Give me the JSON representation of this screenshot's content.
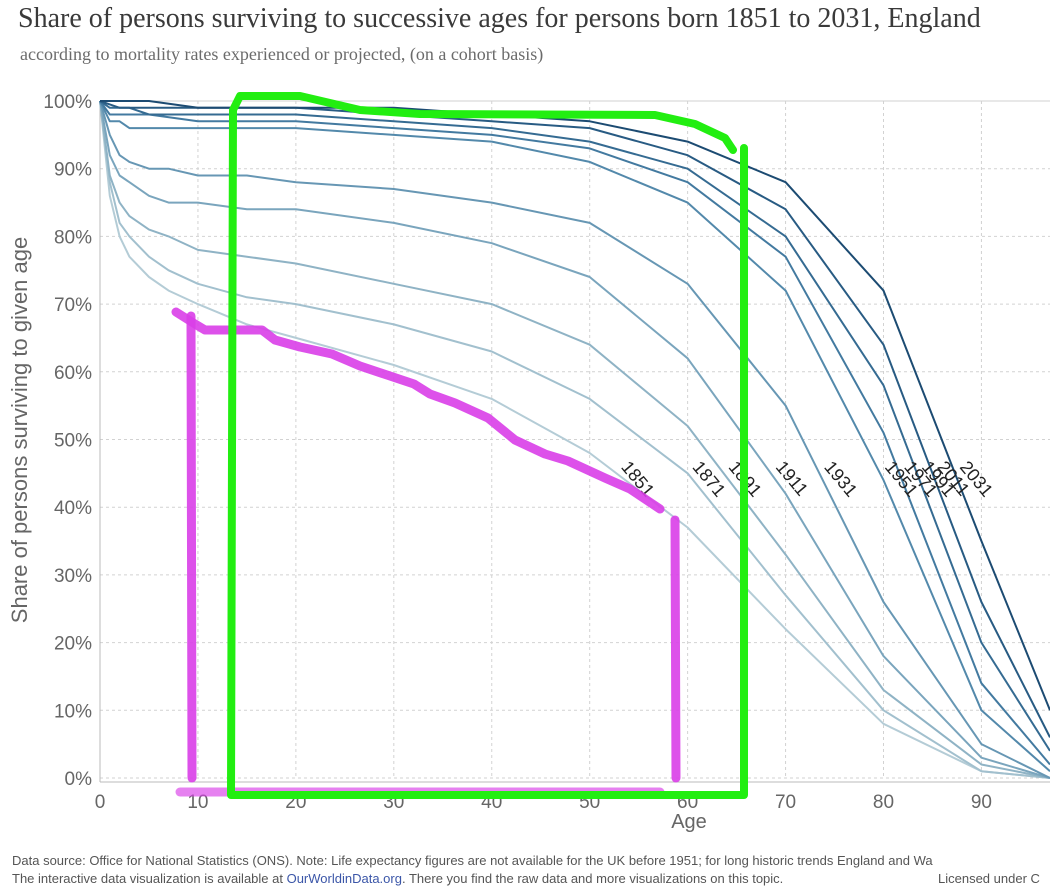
{
  "title": "Share of persons surviving  to successive ages for persons born 1851 to 2031, England",
  "subtitle": "according to mortality rates experienced or projected, (on a cohort basis)",
  "footer": {
    "line1": "Data source: Office for National Statistics (ONS). Note: Life expectancy figures are not available for the UK before 1951; for long historic trends England and Wa",
    "line2_prefix": "The interactive data visualization is available at ",
    "line2_link": "OurWorldinData.org",
    "line2_suffix": ". There you find the raw data and more visualizations on this topic.",
    "license": "Licensed under C"
  },
  "chart_data": {
    "type": "line",
    "title": "Share of persons surviving  to successive ages for persons born 1851 to 2031, England",
    "subtitle": "according to mortality rates experienced or projected, (on a cohort basis)",
    "xlabel": "Age",
    "ylabel": "Share of persons surviving to given age",
    "xlim": [
      0,
      97
    ],
    "ylim": [
      0,
      100
    ],
    "grid": true,
    "x_ticks": [
      0,
      10,
      20,
      30,
      40,
      50,
      60,
      70,
      80,
      90
    ],
    "y_ticks": [
      {
        "value": 0,
        "label": "0%"
      },
      {
        "value": 10,
        "label": "10%"
      },
      {
        "value": 20,
        "label": "20%"
      },
      {
        "value": 30,
        "label": "30%"
      },
      {
        "value": 40,
        "label": "40%"
      },
      {
        "value": 50,
        "label": "50%"
      },
      {
        "value": 60,
        "label": "60%"
      },
      {
        "value": 70,
        "label": "70%"
      },
      {
        "value": 80,
        "label": "80%"
      },
      {
        "value": 90,
        "label": "90%"
      },
      {
        "value": 100,
        "label": "100%"
      }
    ],
    "series": [
      {
        "name": "1851",
        "color": "#b4ccd6",
        "x": [
          0,
          1,
          2,
          3,
          5,
          7,
          10,
          15,
          20,
          30,
          40,
          50,
          60,
          70,
          80,
          90,
          97
        ],
        "y": [
          100,
          86,
          80,
          77,
          74,
          72,
          70,
          67,
          65,
          61,
          56,
          48,
          37,
          22,
          8,
          1,
          0
        ]
      },
      {
        "name": "1871",
        "color": "#a2c0ce",
        "x": [
          0,
          1,
          2,
          3,
          5,
          7,
          10,
          15,
          20,
          30,
          40,
          50,
          60,
          70,
          80,
          90,
          97
        ],
        "y": [
          100,
          88,
          82,
          80,
          77,
          75,
          73,
          71,
          70,
          67,
          63,
          56,
          45,
          27,
          10,
          1,
          0
        ]
      },
      {
        "name": "1891",
        "color": "#8fb3c5",
        "x": [
          0,
          1,
          2,
          3,
          5,
          7,
          10,
          15,
          20,
          30,
          40,
          50,
          60,
          70,
          80,
          90,
          97
        ],
        "y": [
          100,
          89,
          85,
          83,
          81,
          80,
          78,
          77,
          76,
          73,
          70,
          64,
          52,
          33,
          13,
          2,
          0
        ]
      },
      {
        "name": "1911",
        "color": "#7aa5bd",
        "x": [
          0,
          1,
          2,
          3,
          5,
          7,
          10,
          15,
          20,
          30,
          40,
          50,
          60,
          70,
          80,
          90,
          97
        ],
        "y": [
          100,
          92,
          89,
          88,
          86,
          85,
          85,
          84,
          84,
          82,
          79,
          74,
          62,
          42,
          18,
          3,
          0
        ]
      },
      {
        "name": "1931",
        "color": "#6797b4",
        "x": [
          0,
          1,
          2,
          3,
          5,
          7,
          10,
          15,
          20,
          30,
          40,
          50,
          60,
          70,
          80,
          90,
          97
        ],
        "y": [
          100,
          95,
          92,
          91,
          90,
          90,
          89,
          89,
          88,
          87,
          85,
          82,
          73,
          55,
          26,
          5,
          0
        ]
      },
      {
        "name": "1951",
        "color": "#5389ab",
        "x": [
          0,
          1,
          2,
          3,
          5,
          10,
          20,
          30,
          40,
          50,
          60,
          70,
          80,
          90,
          97
        ],
        "y": [
          100,
          97,
          97,
          96,
          96,
          96,
          96,
          95,
          94,
          91,
          85,
          72,
          44,
          10,
          1
        ]
      },
      {
        "name": "1971",
        "color": "#437aa0",
        "x": [
          0,
          1,
          2,
          3,
          5,
          10,
          20,
          30,
          40,
          50,
          60,
          70,
          80,
          90,
          97
        ],
        "y": [
          100,
          98,
          98,
          98,
          98,
          97,
          97,
          96,
          95,
          93,
          88,
          77,
          51,
          14,
          2
        ]
      },
      {
        "name": "1991",
        "color": "#356b92",
        "x": [
          0,
          1,
          2,
          3,
          5,
          10,
          20,
          30,
          40,
          50,
          60,
          70,
          80,
          90,
          97
        ],
        "y": [
          100,
          99,
          99,
          99,
          98,
          98,
          98,
          97,
          96,
          94,
          90,
          80,
          58,
          20,
          4
        ]
      },
      {
        "name": "2011",
        "color": "#285b83",
        "x": [
          0,
          1,
          2,
          3,
          5,
          10,
          20,
          30,
          40,
          50,
          60,
          70,
          80,
          90,
          97
        ],
        "y": [
          100,
          99.5,
          99,
          99,
          99,
          99,
          99,
          98,
          97,
          96,
          92,
          84,
          64,
          26,
          6
        ]
      },
      {
        "name": "2031",
        "color": "#1c4b72",
        "x": [
          0,
          1,
          2,
          3,
          5,
          10,
          20,
          30,
          40,
          50,
          60,
          70,
          80,
          90,
          97
        ],
        "y": [
          100,
          100,
          100,
          100,
          100,
          99,
          99,
          99,
          98,
          97,
          94,
          88,
          72,
          35,
          10
        ]
      }
    ]
  }
}
